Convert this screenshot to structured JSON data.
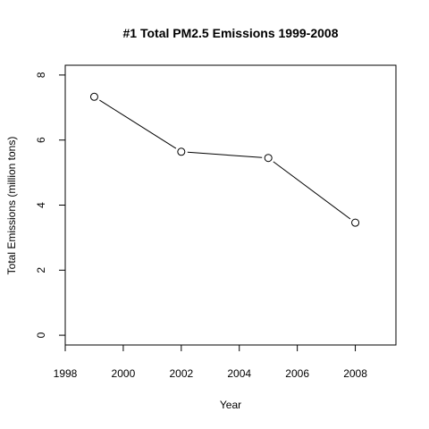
{
  "chart_data": {
    "type": "line",
    "title": "#1 Total PM2.5 Emissions 1999-2008",
    "xlabel": "Year",
    "ylabel": "Total Emissions (million tons)",
    "x": [
      1999,
      2002,
      2005,
      2008
    ],
    "y": [
      7.33,
      5.64,
      5.45,
      3.46
    ],
    "xlim": [
      1998,
      2009.4
    ],
    "ylim": [
      -0.3,
      8.3
    ],
    "xticks": [
      1998,
      2000,
      2002,
      2004,
      2006,
      2008
    ],
    "yticks": [
      0,
      2,
      4,
      6,
      8
    ],
    "xtick_labels": [
      "1998",
      "2000",
      "2002",
      "2004",
      "2006",
      "2008"
    ],
    "ytick_labels": [
      "0",
      "2",
      "4",
      "6",
      "8"
    ],
    "marker": "open-circle",
    "line_color": "#000000",
    "grid": false,
    "legend": "none"
  }
}
